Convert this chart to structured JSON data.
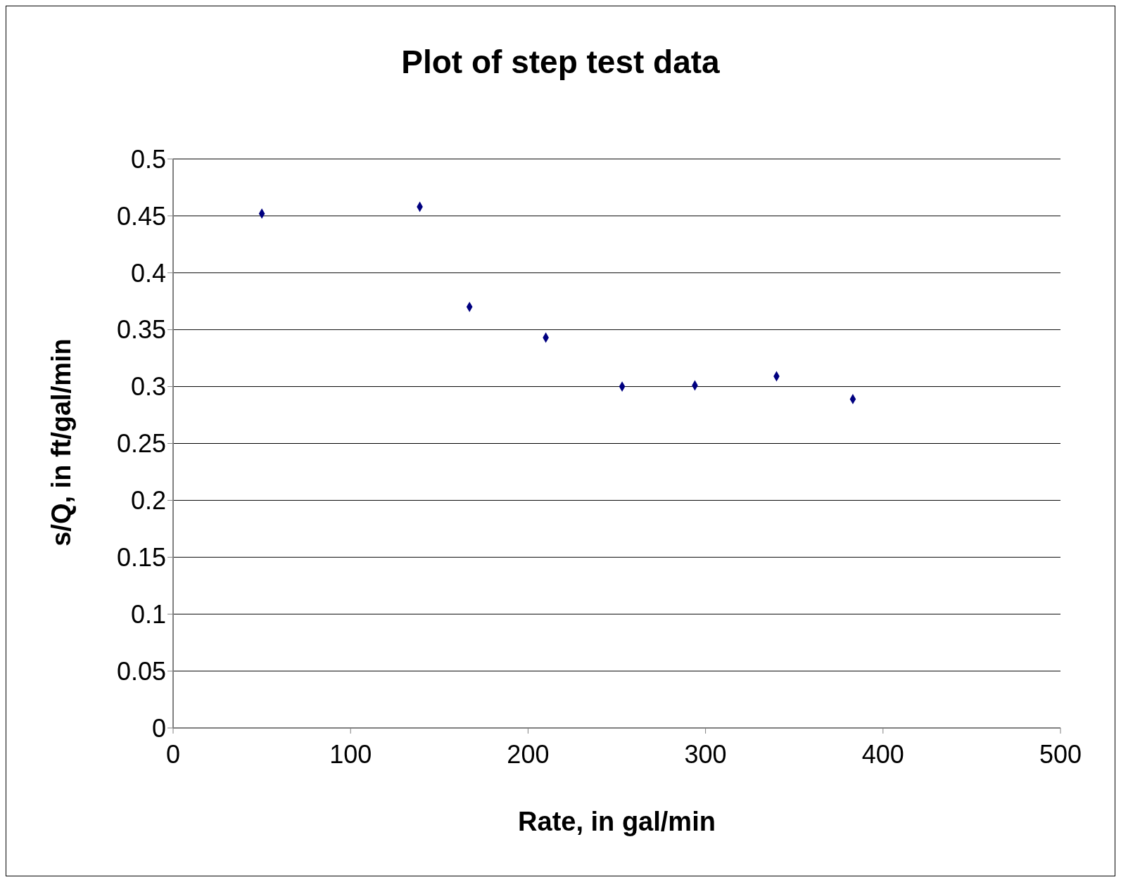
{
  "chart_data": {
    "type": "scatter",
    "title": "Plot of step test data",
    "xlabel": "Rate, in gal/min",
    "ylabel": "s/Q, in ft/gal/min",
    "series": [
      {
        "color": "#000080",
        "x": [
          50,
          139,
          167,
          210,
          253,
          294,
          340,
          383
        ],
        "values": [
          0.452,
          0.458,
          0.37,
          0.343,
          0.3,
          0.301,
          0.309,
          0.289
        ]
      }
    ],
    "xlim": [
      0,
      500
    ],
    "xticks": [
      0,
      100,
      200,
      300,
      400,
      500
    ],
    "ylim": [
      0,
      0.5
    ],
    "yticks": [
      0,
      0.05,
      0.1,
      0.15,
      0.2,
      0.25,
      0.3,
      0.35,
      0.4,
      0.45,
      0.5
    ],
    "grid": "y",
    "legend": false,
    "marker": "diamond"
  }
}
